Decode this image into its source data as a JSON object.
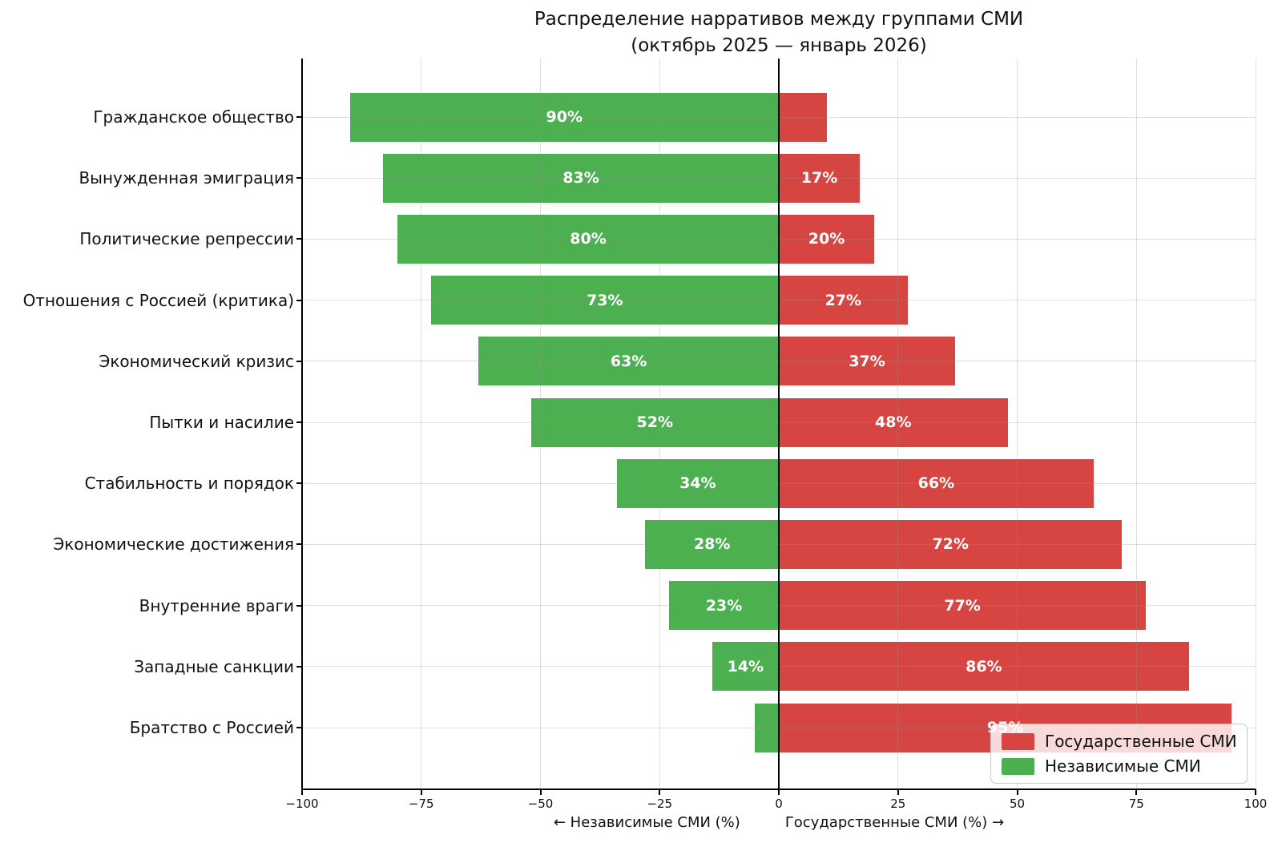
{
  "title": {
    "line1": "Распределение нарративов между группами СМИ",
    "line2": "(октябрь 2025 — январь 2026)"
  },
  "chart_data": {
    "type": "bar",
    "variant": "horizontal-diverging",
    "title": "Распределение нарративов между группами СМИ (октябрь 2025 — январь 2026)",
    "categories": [
      "Гражданское общество",
      "Вынужденная эмиграция",
      "Политические репрессии",
      "Отношения с Россией (критика)",
      "Экономический кризис",
      "Пытки и насилие",
      "Стабильность и порядок",
      "Экономические достижения",
      "Внутренние враги",
      "Западные санкции",
      "Братство с Россией"
    ],
    "series": [
      {
        "name": "Независимые СМИ",
        "side": "left",
        "color": "#4caf50",
        "values": [
          90,
          83,
          80,
          73,
          63,
          52,
          34,
          28,
          23,
          14,
          5
        ]
      },
      {
        "name": "Государственные СМИ",
        "side": "right",
        "color": "#d64541",
        "values": [
          10,
          17,
          20,
          27,
          37,
          48,
          66,
          72,
          77,
          86,
          95
        ]
      }
    ],
    "bar_labels": {
      "left": [
        "90%",
        "83%",
        "80%",
        "73%",
        "63%",
        "52%",
        "34%",
        "28%",
        "23%",
        "14%",
        ""
      ],
      "right": [
        "",
        "17%",
        "20%",
        "27%",
        "37%",
        "48%",
        "66%",
        "72%",
        "77%",
        "86%",
        "95%"
      ]
    },
    "xlim": [
      -100,
      100
    ],
    "xticks": [
      -100,
      -75,
      -50,
      -25,
      0,
      25,
      50,
      75,
      100
    ],
    "xtick_labels": [
      "−100",
      "−75",
      "−50",
      "−25",
      "0",
      "25",
      "50",
      "75",
      "100"
    ],
    "xlabel_left": "← Независимые СМИ (%)",
    "xlabel_right": "Государственные СМИ (%) →",
    "grid": true,
    "zero_line": true,
    "legend": {
      "position": "lower right",
      "items": [
        {
          "label": "Государственные СМИ",
          "color": "#d64541"
        },
        {
          "label": "Независимые СМИ",
          "color": "#4caf50"
        }
      ]
    }
  },
  "colors": {
    "green": "#4caf50",
    "red": "#d64541",
    "grid": "#e6e6e6",
    "text": "#111111",
    "legend_border": "#c9c9c9"
  }
}
